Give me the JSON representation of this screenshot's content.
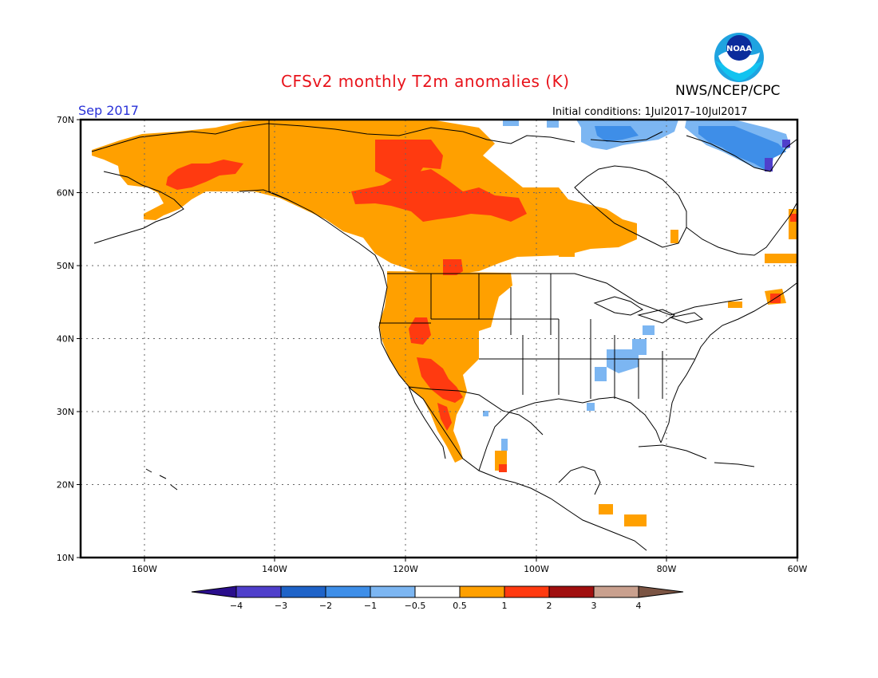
{
  "title": "CFSv2 monthly T2m anomalies (K)",
  "agency": "NWS/NCEP/CPC",
  "logo_text": "NOAA",
  "valid_month": "Sep 2017",
  "initial_conditions": "Initial conditions: 1Jul2017–10Jul2017",
  "map": {
    "lon_range": [
      -172,
      -60
    ],
    "lat_range": [
      10,
      70
    ],
    "lat_ticks": [
      "70N",
      "60N",
      "50N",
      "40N",
      "30N",
      "20N",
      "10N"
    ],
    "lon_ticks": [
      "160W",
      "140W",
      "120W",
      "100W",
      "80W",
      "60W"
    ],
    "grid": "dotted",
    "anomaly_regions": [
      {
        "label": "Alaska / NW Canada",
        "category": "0.5 to 1"
      },
      {
        "label": "Yukon / Northwest Territories core",
        "category": "1 to 2"
      },
      {
        "label": "Western US",
        "category": "0.5 to 1"
      },
      {
        "label": "Southwest US / Nevada",
        "category": "1 to 2"
      },
      {
        "label": "Hudson Bay region",
        "category": "0.5 to 1"
      },
      {
        "label": "Canadian Arctic Archipelago",
        "category": "-1 to -0.5"
      },
      {
        "label": "Lower Mississippi / Ohio Valley",
        "category": "-1 to -0.5"
      }
    ]
  },
  "colorbar": {
    "labels": [
      "−4",
      "−3",
      "−2",
      "−1",
      "−0.5",
      "0.5",
      "1",
      "2",
      "3",
      "4"
    ],
    "colors": [
      "#2a0e8c",
      "#4f3fcb",
      "#1e63c8",
      "#3e8ee8",
      "#7cb6f2",
      "#ffffff",
      "#ffa000",
      "#ff3a10",
      "#a00f0f",
      "#c9a08e",
      "#7b5443"
    ]
  }
}
